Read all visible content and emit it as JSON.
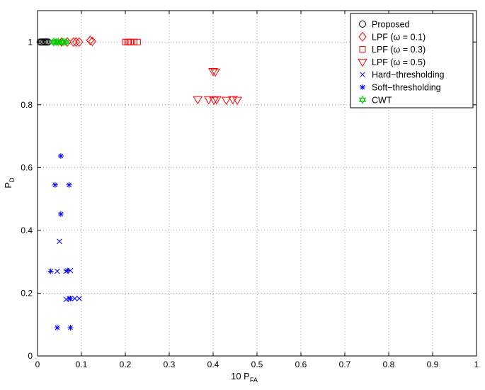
{
  "chart_data": {
    "type": "scatter",
    "xlabel": {
      "main": "10 P",
      "sub": "FA"
    },
    "ylabel": {
      "main": "P",
      "sub": "D"
    },
    "xlim": [
      0,
      1
    ],
    "ylim": [
      0,
      1.1
    ],
    "xticks": [
      0,
      0.1,
      0.2,
      0.3,
      0.4,
      0.5,
      0.6,
      0.7,
      0.8,
      0.9,
      1
    ],
    "xtick_labels": [
      "0",
      "0.1",
      "0.2",
      "0.3",
      "0.4",
      "0.5",
      "0.6",
      "0.7",
      "0.8",
      "0.9",
      "1"
    ],
    "yticks": [
      0,
      0.2,
      0.4,
      0.6,
      0.8,
      1
    ],
    "ytick_labels": [
      "0",
      "0.2",
      "0.4",
      "0.6",
      "0.8",
      "1"
    ],
    "grid": true,
    "grid_style": "dotted",
    "legend_position": "top-right",
    "series": [
      {
        "name": "Proposed",
        "marker": "circle",
        "color": "#000000",
        "points": [
          [
            0.006,
            1.0
          ],
          [
            0.009,
            1.0
          ],
          [
            0.012,
            1.0
          ],
          [
            0.015,
            1.0
          ],
          [
            0.018,
            1.0
          ],
          [
            0.021,
            1.0
          ],
          [
            0.024,
            1.0
          ]
        ]
      },
      {
        "name": "LPF (ω = 0.1)",
        "marker": "diamond",
        "color": "#ff0000",
        "points": [
          [
            0.055,
            1.0
          ],
          [
            0.068,
            1.0
          ],
          [
            0.082,
            1.0
          ],
          [
            0.088,
            1.0
          ],
          [
            0.095,
            1.0
          ],
          [
            0.12,
            1.005
          ],
          [
            0.125,
            1.002
          ]
        ]
      },
      {
        "name": "LPF (ω = 0.3)",
        "marker": "square",
        "color": "#ff0000",
        "points": [
          [
            0.2,
            1.0
          ],
          [
            0.205,
            1.0
          ],
          [
            0.208,
            1.0
          ],
          [
            0.212,
            1.0
          ],
          [
            0.22,
            1.0
          ],
          [
            0.228,
            1.0
          ]
        ]
      },
      {
        "name": "LPF (ω = 0.5)",
        "marker": "triangle-down",
        "color": "#ff0000",
        "points": [
          [
            0.365,
            0.817
          ],
          [
            0.39,
            0.817
          ],
          [
            0.4,
            0.907
          ],
          [
            0.405,
            0.905
          ],
          [
            0.402,
            0.815
          ],
          [
            0.408,
            0.817
          ],
          [
            0.43,
            0.815
          ],
          [
            0.445,
            0.817
          ],
          [
            0.455,
            0.815
          ]
        ]
      },
      {
        "name": "Hard−thresholding",
        "marker": "x",
        "color": "#0000ff",
        "points": [
          [
            0.05,
            0.365
          ],
          [
            0.045,
            0.27
          ],
          [
            0.065,
            0.27
          ],
          [
            0.075,
            0.272
          ],
          [
            0.065,
            0.18
          ],
          [
            0.085,
            0.183
          ],
          [
            0.095,
            0.183
          ]
        ]
      },
      {
        "name": "Soft−thresholding",
        "marker": "asterisk",
        "color": "#0000ff",
        "points": [
          [
            0.053,
            0.637
          ],
          [
            0.04,
            0.545
          ],
          [
            0.072,
            0.545
          ],
          [
            0.053,
            0.452
          ],
          [
            0.03,
            0.27
          ],
          [
            0.068,
            0.272
          ],
          [
            0.072,
            0.183
          ],
          [
            0.075,
            0.183
          ],
          [
            0.045,
            0.09
          ],
          [
            0.075,
            0.09
          ]
        ]
      },
      {
        "name": "CWT",
        "marker": "hexagram",
        "color": "#00cc00",
        "points": [
          [
            0.036,
            1.0
          ],
          [
            0.04,
            1.0
          ],
          [
            0.044,
            1.0
          ],
          [
            0.048,
            1.0
          ],
          [
            0.055,
            1.0
          ],
          [
            0.06,
            1.0
          ],
          [
            0.065,
            1.0
          ]
        ]
      }
    ]
  }
}
